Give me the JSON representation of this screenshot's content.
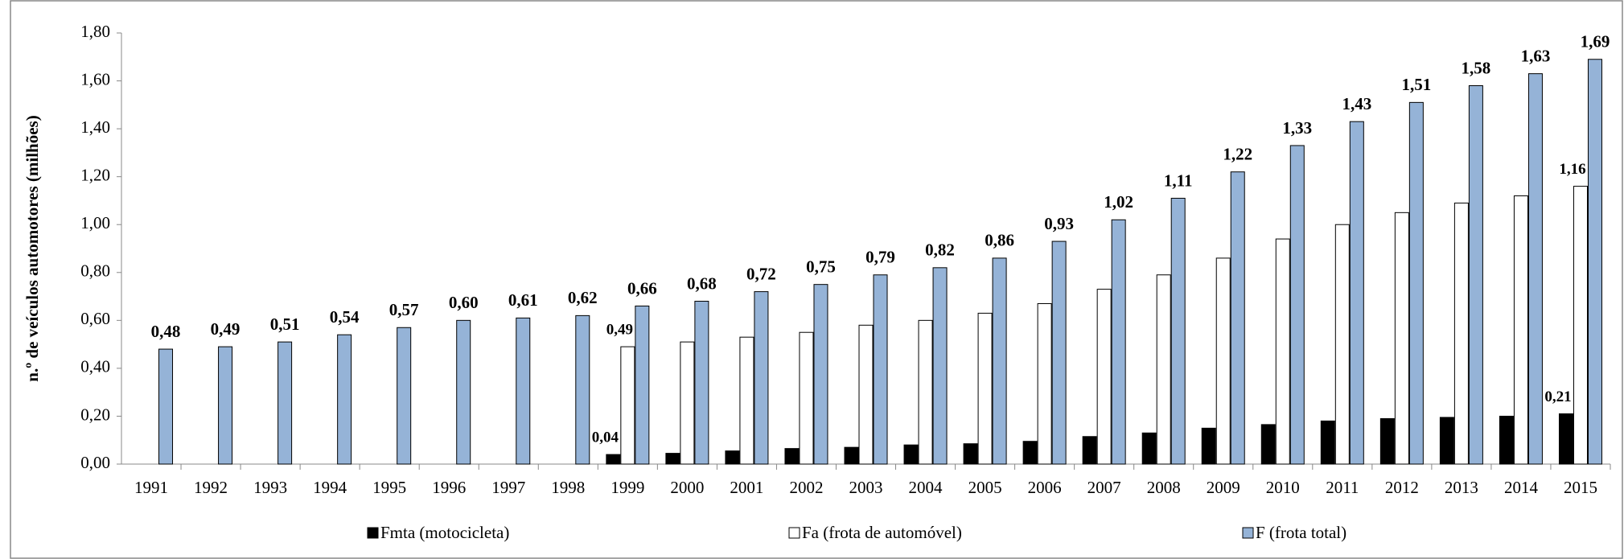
{
  "chart_data": {
    "type": "bar",
    "y_label": "n.º de veículos automotores (milhões)",
    "categories": [
      "1991",
      "1992",
      "1993",
      "1994",
      "1995",
      "1996",
      "1997",
      "1998",
      "1999",
      "2000",
      "2001",
      "2002",
      "2003",
      "2004",
      "2005",
      "2006",
      "2007",
      "2008",
      "2009",
      "2010",
      "2011",
      "2012",
      "2013",
      "2014",
      "2015"
    ],
    "series": [
      {
        "name": "Fmta (motocicleta)",
        "color": "#000000",
        "values": [
          null,
          null,
          null,
          null,
          null,
          null,
          null,
          null,
          0.04,
          0.045,
          0.055,
          0.065,
          0.07,
          0.08,
          0.085,
          0.095,
          0.115,
          0.13,
          0.15,
          0.165,
          0.18,
          0.19,
          0.195,
          0.2,
          0.21
        ],
        "value_labels": [
          null,
          null,
          null,
          null,
          null,
          null,
          null,
          null,
          "0,04",
          null,
          null,
          null,
          null,
          null,
          null,
          null,
          null,
          null,
          null,
          null,
          null,
          null,
          null,
          null,
          "0,21"
        ]
      },
      {
        "name": "Fa (frota de automóvel)",
        "color": "#ffffff",
        "values": [
          null,
          null,
          null,
          null,
          null,
          null,
          null,
          null,
          0.49,
          0.51,
          0.53,
          0.55,
          0.58,
          0.6,
          0.63,
          0.67,
          0.73,
          0.79,
          0.86,
          0.94,
          1.0,
          1.05,
          1.09,
          1.12,
          1.16
        ],
        "value_labels": [
          null,
          null,
          null,
          null,
          null,
          null,
          null,
          null,
          "0,49",
          null,
          null,
          null,
          null,
          null,
          null,
          null,
          null,
          null,
          null,
          null,
          null,
          null,
          null,
          null,
          "1,16"
        ]
      },
      {
        "name": "F (frota total)",
        "color": "#95b3d7",
        "values": [
          0.48,
          0.49,
          0.51,
          0.54,
          0.57,
          0.6,
          0.61,
          0.62,
          0.66,
          0.68,
          0.72,
          0.75,
          0.79,
          0.82,
          0.86,
          0.93,
          1.02,
          1.11,
          1.22,
          1.33,
          1.43,
          1.51,
          1.58,
          1.63,
          1.69
        ],
        "value_labels": [
          "0,48",
          "0,49",
          "0,51",
          "0,54",
          "0,57",
          "0,60",
          "0,61",
          "0,62",
          "0,66",
          "0,68",
          "0,72",
          "0,75",
          "0,79",
          "0,82",
          "0,86",
          "0,93",
          "1,02",
          "1,11",
          "1,22",
          "1,33",
          "1,43",
          "1,51",
          "1,58",
          "1,63",
          "1,69"
        ]
      }
    ],
    "ylim": [
      0,
      1.8
    ],
    "yticks": [
      {
        "value": 0,
        "label": "0,00"
      },
      {
        "value": 0.2,
        "label": "0,20"
      },
      {
        "value": 0.4,
        "label": "0,40"
      },
      {
        "value": 0.6,
        "label": "0,60"
      },
      {
        "value": 0.8,
        "label": "0,80"
      },
      {
        "value": 1.0,
        "label": "1,00"
      },
      {
        "value": 1.2,
        "label": "1,20"
      },
      {
        "value": 1.4,
        "label": "1,40"
      },
      {
        "value": 1.6,
        "label": "1,60"
      },
      {
        "value": 1.8,
        "label": "1,80"
      }
    ],
    "legend": "bottom"
  }
}
